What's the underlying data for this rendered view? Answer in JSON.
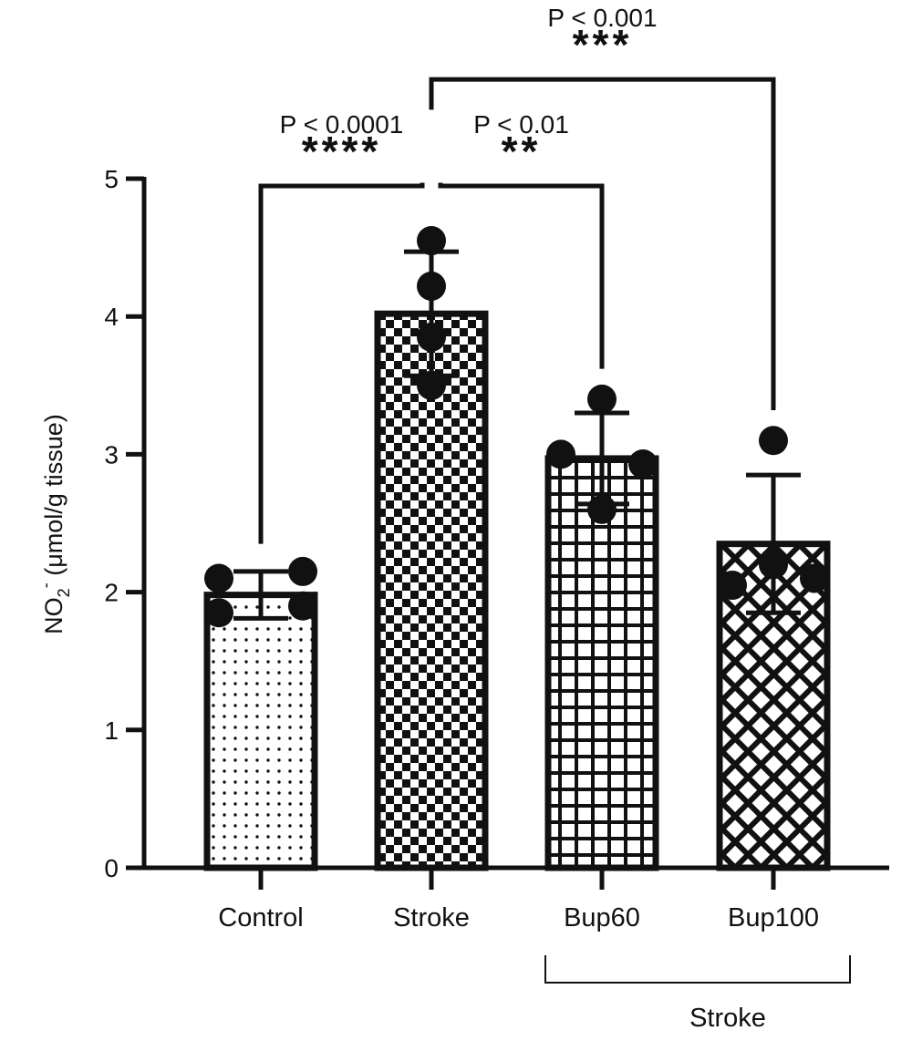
{
  "chart_data": {
    "type": "bar",
    "categories": [
      "Control",
      "Stroke",
      "Bup60",
      "Bup100"
    ],
    "values": [
      1.98,
      4.02,
      2.97,
      2.35
    ],
    "errors": [
      0.17,
      0.45,
      0.33,
      0.5
    ],
    "points": [
      [
        2.1,
        2.15,
        1.85,
        1.9
      ],
      [
        4.55,
        4.22,
        3.85,
        3.5
      ],
      [
        3.4,
        3.0,
        2.93,
        2.6
      ],
      [
        3.1,
        2.2,
        2.1,
        2.05
      ]
    ],
    "fill_patterns": [
      "dots",
      "checker",
      "grid",
      "crosshatch"
    ],
    "ylabel_main": "NO",
    "ylabel_sub": "2",
    "ylabel_sup": "-",
    "ylabel_rest": " (μmol/g tissue)",
    "ylim": [
      0,
      5
    ],
    "yticks": [
      "0",
      "1",
      "2",
      "3",
      "4",
      "5"
    ],
    "group_label": "Stroke",
    "group_members": [
      "Bup60",
      "Bup100"
    ],
    "comparisons": [
      {
        "from": "Control",
        "to": "Stroke",
        "p": "P < 0.0001",
        "stars": "****",
        "level": 5.0
      },
      {
        "from": "Stroke",
        "to": "Bup60",
        "p": "P < 0.01",
        "stars": "**",
        "level": 5.0
      },
      {
        "from": "Stroke",
        "to": "Bup100",
        "p": "P < 0.001",
        "stars": "***",
        "level": 5.72
      }
    ],
    "grid": false,
    "legend": "none",
    "colors": {
      "bar_stroke": "#111111",
      "bar_bg": "#ffffff",
      "marker": "#111111"
    }
  }
}
